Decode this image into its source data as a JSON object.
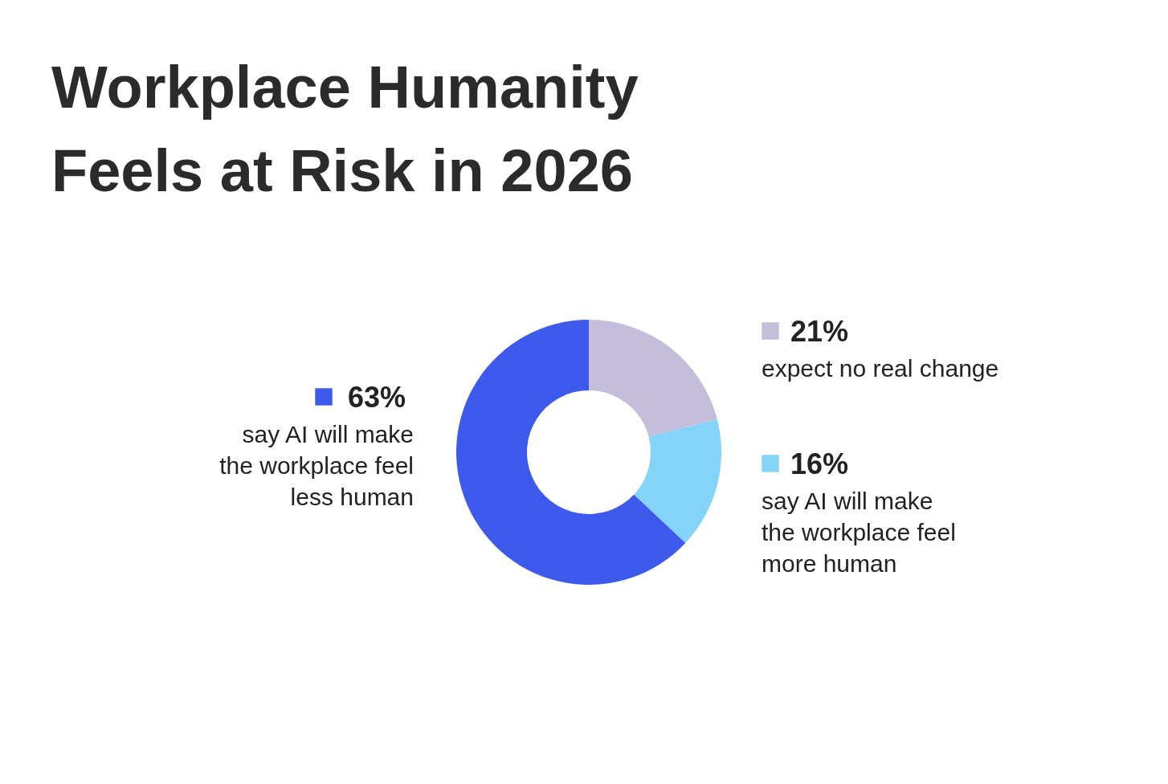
{
  "chart_data": {
    "type": "donut",
    "title": "Workplace Humanity\nFeels at Risk in 2026",
    "categories": [
      "expect no real change",
      "say AI will make\nthe workplace feel\nmore human",
      "say AI will make\nthe workplace feel\nless human"
    ],
    "values": [
      21,
      16,
      63
    ],
    "colors": [
      "#c4bedb",
      "#84d4f9",
      "#3d5aed"
    ],
    "value_labels": [
      "21%",
      "16%",
      "63%"
    ],
    "legend": "right"
  }
}
